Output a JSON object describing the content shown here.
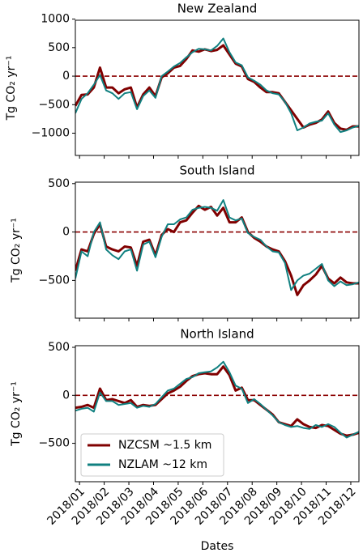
{
  "chart_data": [
    {
      "type": "line",
      "title": "New Zealand",
      "ylabel": "Tg CO₂ yr⁻¹",
      "x": [
        -0.17,
        0.08,
        0.33,
        0.58,
        0.83,
        1.08,
        1.33,
        1.58,
        1.83,
        2.08,
        2.33,
        2.58,
        2.83,
        3.08,
        3.33,
        3.58,
        3.83,
        4.08,
        4.33,
        4.58,
        4.83,
        5.08,
        5.33,
        5.58,
        5.83,
        6.08,
        6.33,
        6.58,
        6.83,
        7.08,
        7.33,
        7.58,
        7.83,
        8.08,
        8.33,
        8.58,
        8.83,
        9.08,
        9.33,
        9.58,
        9.83,
        10.08,
        10.33,
        10.58,
        10.83,
        11.08,
        11.33
      ],
      "xlim": [
        -0.17,
        11.33
      ],
      "xticks": [
        0,
        1,
        2,
        3,
        4,
        5,
        6,
        7,
        8,
        9,
        10,
        11
      ],
      "ylim": [
        -1390,
        980
      ],
      "yticks": [
        {
          "value": -1000,
          "label": "−1000"
        },
        {
          "value": -500,
          "label": "−500"
        },
        0,
        500,
        1000
      ],
      "hline": 0,
      "hline_color": "#8b0000",
      "series": [
        {
          "color": "#800000",
          "values": [
            -520,
            -330,
            -320,
            -200,
            150,
            -200,
            -200,
            -300,
            -230,
            -200,
            -550,
            -320,
            -200,
            -350,
            -20,
            50,
            150,
            180,
            300,
            450,
            430,
            470,
            440,
            460,
            540,
            380,
            220,
            170,
            -50,
            -100,
            -200,
            -280,
            -280,
            -300,
            -450,
            -600,
            -750,
            -900,
            -850,
            -820,
            -760,
            -620,
            -820,
            -920,
            -940,
            -880,
            -880
          ]
        },
        {
          "color": "#108080",
          "values": [
            -650,
            -400,
            -300,
            -150,
            20,
            -250,
            -300,
            -400,
            -300,
            -280,
            -580,
            -350,
            -250,
            -380,
            0,
            80,
            170,
            230,
            330,
            420,
            480,
            470,
            450,
            530,
            660,
            420,
            240,
            190,
            -20,
            -80,
            -150,
            -250,
            -300,
            -320,
            -450,
            -650,
            -950,
            -900,
            -830,
            -800,
            -780,
            -650,
            -850,
            -980,
            -950,
            -900,
            -870
          ]
        }
      ]
    },
    {
      "type": "line",
      "title": "South Island",
      "ylabel": "Tg CO₂ yr⁻¹",
      "x": [
        -0.17,
        0.08,
        0.33,
        0.58,
        0.83,
        1.08,
        1.33,
        1.58,
        1.83,
        2.08,
        2.33,
        2.58,
        2.83,
        3.08,
        3.33,
        3.58,
        3.83,
        4.08,
        4.33,
        4.58,
        4.83,
        5.08,
        5.33,
        5.58,
        5.83,
        6.08,
        6.33,
        6.58,
        6.83,
        7.08,
        7.33,
        7.58,
        7.83,
        8.08,
        8.33,
        8.58,
        8.83,
        9.08,
        9.33,
        9.58,
        9.83,
        10.08,
        10.33,
        10.58,
        10.83,
        11.08,
        11.33
      ],
      "xlim": [
        -0.17,
        11.33
      ],
      "xticks": [
        0,
        1,
        2,
        3,
        4,
        5,
        6,
        7,
        8,
        9,
        10,
        11
      ],
      "ylim": [
        -890,
        515
      ],
      "yticks": [
        {
          "value": -500,
          "label": "−500"
        },
        0,
        500
      ],
      "hline": 0,
      "hline_color": "#8b0000",
      "series": [
        {
          "color": "#800000",
          "values": [
            -400,
            -180,
            -200,
            -20,
            80,
            -150,
            -180,
            -200,
            -150,
            -160,
            -350,
            -100,
            -80,
            -240,
            -30,
            30,
            0,
            100,
            120,
            200,
            270,
            230,
            260,
            170,
            250,
            100,
            100,
            150,
            0,
            -60,
            -100,
            -150,
            -180,
            -200,
            -300,
            -450,
            -650,
            -550,
            -500,
            -440,
            -350,
            -480,
            -530,
            -470,
            -520,
            -530,
            -530
          ]
        },
        {
          "color": "#108080",
          "values": [
            -480,
            -200,
            -250,
            0,
            100,
            -180,
            -240,
            -280,
            -200,
            -180,
            -400,
            -130,
            -100,
            -260,
            -50,
            80,
            80,
            130,
            150,
            230,
            250,
            260,
            250,
            220,
            330,
            150,
            120,
            140,
            -10,
            -50,
            -80,
            -150,
            -200,
            -210,
            -320,
            -600,
            -500,
            -450,
            -430,
            -380,
            -330,
            -500,
            -560,
            -510,
            -550,
            -540,
            -520
          ]
        }
      ]
    },
    {
      "type": "line",
      "title": "North Island",
      "ylabel": "Tg CO₂ yr⁻¹",
      "xlabel": "Dates",
      "x": [
        -0.17,
        0.08,
        0.33,
        0.58,
        0.83,
        1.08,
        1.33,
        1.58,
        1.83,
        2.08,
        2.33,
        2.58,
        2.83,
        3.08,
        3.33,
        3.58,
        3.83,
        4.08,
        4.33,
        4.58,
        4.83,
        5.08,
        5.33,
        5.58,
        5.83,
        6.08,
        6.33,
        6.58,
        6.83,
        7.08,
        7.33,
        7.58,
        7.83,
        8.08,
        8.33,
        8.58,
        8.83,
        9.08,
        9.33,
        9.58,
        9.83,
        10.08,
        10.33,
        10.58,
        10.83,
        11.08,
        11.33
      ],
      "xlim": [
        -0.17,
        11.33
      ],
      "xticks": [
        {
          "value": 0,
          "label": "2018/01"
        },
        {
          "value": 1,
          "label": "2018/02"
        },
        {
          "value": 2,
          "label": "2018/03"
        },
        {
          "value": 3,
          "label": "2018/04"
        },
        {
          "value": 4,
          "label": "2018/05"
        },
        {
          "value": 5,
          "label": "2018/06"
        },
        {
          "value": 6,
          "label": "2018/07"
        },
        {
          "value": 7,
          "label": "2018/08"
        },
        {
          "value": 8,
          "label": "2018/09"
        },
        {
          "value": 9,
          "label": "2018/10"
        },
        {
          "value": 10,
          "label": "2018/11"
        },
        {
          "value": 11,
          "label": "2018/12"
        }
      ],
      "ylim": [
        -900,
        517
      ],
      "yticks": [
        {
          "value": -500,
          "label": "−500"
        },
        0,
        500
      ],
      "hline": 0,
      "hline_color": "#8b0000",
      "legend": "lower left",
      "series": [
        {
          "name": "NZCSM ~1.5 km",
          "color": "#800000",
          "values": [
            -130,
            -120,
            -100,
            -130,
            70,
            -50,
            -40,
            -60,
            -80,
            -50,
            -120,
            -100,
            -110,
            -100,
            -40,
            20,
            50,
            90,
            150,
            200,
            220,
            230,
            220,
            220,
            300,
            210,
            50,
            80,
            -50,
            -50,
            -100,
            -150,
            -200,
            -280,
            -300,
            -320,
            -250,
            -300,
            -330,
            -340,
            -310,
            -320,
            -360,
            -400,
            -420,
            -410,
            -390
          ]
        },
        {
          "name": "NZLAM ~12 km",
          "color": "#108080",
          "values": [
            -160,
            -140,
            -130,
            -170,
            30,
            -60,
            -60,
            -100,
            -90,
            -80,
            -130,
            -110,
            -120,
            -90,
            -20,
            50,
            70,
            120,
            170,
            190,
            230,
            240,
            250,
            290,
            350,
            240,
            100,
            70,
            -80,
            -40,
            -90,
            -150,
            -210,
            -280,
            -310,
            -330,
            -320,
            -340,
            -350,
            -310,
            -330,
            -300,
            -330,
            -390,
            -440,
            -410,
            -380
          ]
        }
      ]
    }
  ]
}
